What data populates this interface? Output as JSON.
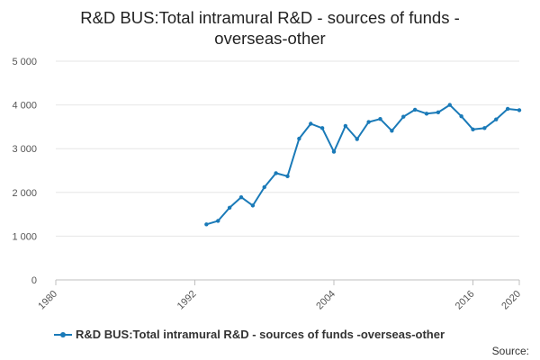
{
  "chart_data": {
    "type": "line",
    "title_lines": [
      "R&D BUS:Total intramural R&D - sources of funds -",
      "overseas-other"
    ],
    "xlabel": "",
    "ylabel": "",
    "xlim": [
      1980,
      2020
    ],
    "ylim": [
      0,
      5000
    ],
    "x_ticks": [
      1980,
      1992,
      2004,
      2016,
      2020
    ],
    "y_ticks": [
      0,
      1000,
      2000,
      3000,
      4000,
      5000
    ],
    "y_tick_labels": [
      "0",
      "1 000",
      "2 000",
      "3 000",
      "4 000",
      "5 000"
    ],
    "grid": "horizontal",
    "legend_position": "bottom",
    "color": "#1a7ab8",
    "series": [
      {
        "name": "R&D BUS:Total intramural R&D - sources of funds -overseas-other",
        "x": [
          1993,
          1994,
          1995,
          1996,
          1997,
          1998,
          1999,
          2000,
          2001,
          2002,
          2003,
          2004,
          2005,
          2006,
          2007,
          2008,
          2009,
          2010,
          2011,
          2012,
          2013,
          2014,
          2015,
          2016,
          2017,
          2018,
          2019,
          2020
        ],
        "values": [
          1270,
          1350,
          1650,
          1890,
          1700,
          2120,
          2440,
          2370,
          3230,
          3570,
          3470,
          2930,
          3520,
          3220,
          3610,
          3680,
          3410,
          3730,
          3890,
          3800,
          3830,
          4000,
          3740,
          3440,
          3470,
          3670,
          3910,
          3880
        ]
      }
    ]
  },
  "source_label": "Source:"
}
